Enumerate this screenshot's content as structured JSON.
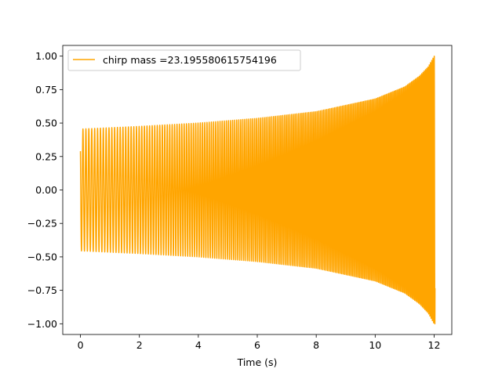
{
  "chart_data": {
    "type": "line",
    "title": "",
    "xlabel": "Time (s)",
    "ylabel": "",
    "xlim": [
      -0.6,
      12.6
    ],
    "ylim": [
      -1.08,
      1.08
    ],
    "xticks": [
      0,
      2,
      4,
      6,
      8,
      10,
      12
    ],
    "xtick_labels": [
      "0",
      "2",
      "4",
      "6",
      "8",
      "10",
      "12"
    ],
    "yticks": [
      -1.0,
      -0.75,
      -0.5,
      -0.25,
      0.0,
      0.25,
      0.5,
      0.75,
      1.0
    ],
    "ytick_labels": [
      "−1.00",
      "−0.75",
      "−0.50",
      "−0.25",
      "0.00",
      "0.25",
      "0.50",
      "0.75",
      "1.00"
    ],
    "grid": false,
    "legend_position": "top-left",
    "series": [
      {
        "name": "chirp mass =23.195580615754196",
        "color": "#ffa500",
        "x_range": [
          0,
          12.03
        ],
        "start_value": 0.29,
        "envelope": [
          {
            "x": 0,
            "y": 0.455
          },
          {
            "x": 2,
            "y": 0.475
          },
          {
            "x": 4,
            "y": 0.5
          },
          {
            "x": 6,
            "y": 0.535
          },
          {
            "x": 8,
            "y": 0.585
          },
          {
            "x": 10,
            "y": 0.68
          },
          {
            "x": 11,
            "y": 0.77
          },
          {
            "x": 11.5,
            "y": 0.85
          },
          {
            "x": 11.8,
            "y": 0.92
          },
          {
            "x": 12,
            "y": 1.0
          }
        ],
        "frequency_start_hz": 10,
        "frequency_end_hz": 24
      }
    ]
  }
}
